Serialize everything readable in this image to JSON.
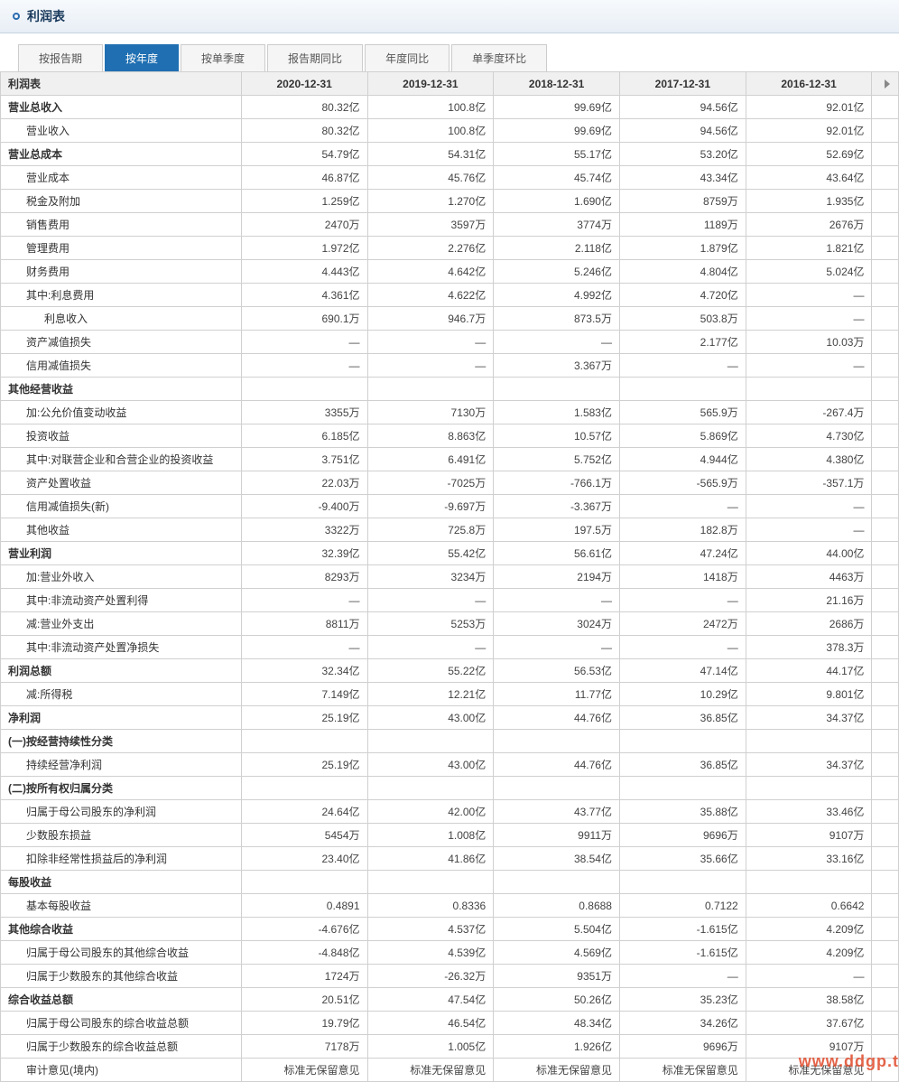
{
  "header": {
    "title": "利润表"
  },
  "tabs": {
    "items": [
      "按报告期",
      "按年度",
      "按单季度",
      "报告期同比",
      "年度同比",
      "单季度环比"
    ],
    "active_index": 1
  },
  "table": {
    "label_header": "利润表",
    "columns": [
      "2020-12-31",
      "2019-12-31",
      "2018-12-31",
      "2017-12-31",
      "2016-12-31"
    ],
    "rows": [
      {
        "label": "营业总收入",
        "bold": true,
        "indent": 0,
        "values": [
          "80.32亿",
          "100.8亿",
          "99.69亿",
          "94.56亿",
          "92.01亿"
        ]
      },
      {
        "label": "营业收入",
        "bold": false,
        "indent": 1,
        "values": [
          "80.32亿",
          "100.8亿",
          "99.69亿",
          "94.56亿",
          "92.01亿"
        ]
      },
      {
        "label": "营业总成本",
        "bold": true,
        "indent": 0,
        "values": [
          "54.79亿",
          "54.31亿",
          "55.17亿",
          "53.20亿",
          "52.69亿"
        ]
      },
      {
        "label": "营业成本",
        "bold": false,
        "indent": 1,
        "values": [
          "46.87亿",
          "45.76亿",
          "45.74亿",
          "43.34亿",
          "43.64亿"
        ]
      },
      {
        "label": "税金及附加",
        "bold": false,
        "indent": 1,
        "values": [
          "1.259亿",
          "1.270亿",
          "1.690亿",
          "8759万",
          "1.935亿"
        ]
      },
      {
        "label": "销售费用",
        "bold": false,
        "indent": 1,
        "values": [
          "2470万",
          "3597万",
          "3774万",
          "1189万",
          "2676万"
        ]
      },
      {
        "label": "管理费用",
        "bold": false,
        "indent": 1,
        "values": [
          "1.972亿",
          "2.276亿",
          "2.118亿",
          "1.879亿",
          "1.821亿"
        ]
      },
      {
        "label": "财务费用",
        "bold": false,
        "indent": 1,
        "values": [
          "4.443亿",
          "4.642亿",
          "5.246亿",
          "4.804亿",
          "5.024亿"
        ]
      },
      {
        "label": "其中:利息费用",
        "bold": false,
        "indent": 1,
        "values": [
          "4.361亿",
          "4.622亿",
          "4.992亿",
          "4.720亿",
          "—"
        ]
      },
      {
        "label": "利息收入",
        "bold": false,
        "indent": 2,
        "values": [
          "690.1万",
          "946.7万",
          "873.5万",
          "503.8万",
          "—"
        ]
      },
      {
        "label": "资产减值损失",
        "bold": false,
        "indent": 1,
        "values": [
          "—",
          "—",
          "—",
          "2.177亿",
          "10.03万"
        ]
      },
      {
        "label": "信用减值损失",
        "bold": false,
        "indent": 1,
        "values": [
          "—",
          "—",
          "3.367万",
          "—",
          "—"
        ]
      },
      {
        "label": "其他经营收益",
        "bold": true,
        "indent": 0,
        "values": [
          "",
          "",
          "",
          "",
          ""
        ]
      },
      {
        "label": "加:公允价值变动收益",
        "bold": false,
        "indent": 1,
        "values": [
          "3355万",
          "7130万",
          "1.583亿",
          "565.9万",
          "-267.4万"
        ]
      },
      {
        "label": "投资收益",
        "bold": false,
        "indent": 1,
        "values": [
          "6.185亿",
          "8.863亿",
          "10.57亿",
          "5.869亿",
          "4.730亿"
        ]
      },
      {
        "label": "其中:对联营企业和合营企业的投资收益",
        "bold": false,
        "indent": 1,
        "values": [
          "3.751亿",
          "6.491亿",
          "5.752亿",
          "4.944亿",
          "4.380亿"
        ]
      },
      {
        "label": "资产处置收益",
        "bold": false,
        "indent": 1,
        "values": [
          "22.03万",
          "-7025万",
          "-766.1万",
          "-565.9万",
          "-357.1万"
        ]
      },
      {
        "label": "信用减值损失(新)",
        "bold": false,
        "indent": 1,
        "values": [
          "-9.400万",
          "-9.697万",
          "-3.367万",
          "—",
          "—"
        ]
      },
      {
        "label": "其他收益",
        "bold": false,
        "indent": 1,
        "values": [
          "3322万",
          "725.8万",
          "197.5万",
          "182.8万",
          "—"
        ]
      },
      {
        "label": "营业利润",
        "bold": true,
        "indent": 0,
        "values": [
          "32.39亿",
          "55.42亿",
          "56.61亿",
          "47.24亿",
          "44.00亿"
        ]
      },
      {
        "label": "加:营业外收入",
        "bold": false,
        "indent": 1,
        "values": [
          "8293万",
          "3234万",
          "2194万",
          "1418万",
          "4463万"
        ]
      },
      {
        "label": "其中:非流动资产处置利得",
        "bold": false,
        "indent": 1,
        "values": [
          "—",
          "—",
          "—",
          "—",
          "21.16万"
        ]
      },
      {
        "label": "减:营业外支出",
        "bold": false,
        "indent": 1,
        "values": [
          "8811万",
          "5253万",
          "3024万",
          "2472万",
          "2686万"
        ]
      },
      {
        "label": "其中:非流动资产处置净损失",
        "bold": false,
        "indent": 1,
        "values": [
          "—",
          "—",
          "—",
          "—",
          "378.3万"
        ]
      },
      {
        "label": "利润总额",
        "bold": true,
        "indent": 0,
        "values": [
          "32.34亿",
          "55.22亿",
          "56.53亿",
          "47.14亿",
          "44.17亿"
        ]
      },
      {
        "label": "减:所得税",
        "bold": false,
        "indent": 1,
        "values": [
          "7.149亿",
          "12.21亿",
          "11.77亿",
          "10.29亿",
          "9.801亿"
        ]
      },
      {
        "label": "净利润",
        "bold": true,
        "indent": 0,
        "values": [
          "25.19亿",
          "43.00亿",
          "44.76亿",
          "36.85亿",
          "34.37亿"
        ]
      },
      {
        "label": "(一)按经营持续性分类",
        "bold": true,
        "indent": 0,
        "values": [
          "",
          "",
          "",
          "",
          ""
        ]
      },
      {
        "label": "持续经营净利润",
        "bold": false,
        "indent": 1,
        "values": [
          "25.19亿",
          "43.00亿",
          "44.76亿",
          "36.85亿",
          "34.37亿"
        ]
      },
      {
        "label": "(二)按所有权归属分类",
        "bold": true,
        "indent": 0,
        "values": [
          "",
          "",
          "",
          "",
          ""
        ]
      },
      {
        "label": "归属于母公司股东的净利润",
        "bold": false,
        "indent": 1,
        "values": [
          "24.64亿",
          "42.00亿",
          "43.77亿",
          "35.88亿",
          "33.46亿"
        ]
      },
      {
        "label": "少数股东损益",
        "bold": false,
        "indent": 1,
        "values": [
          "5454万",
          "1.008亿",
          "9911万",
          "9696万",
          "9107万"
        ]
      },
      {
        "label": "扣除非经常性损益后的净利润",
        "bold": false,
        "indent": 1,
        "values": [
          "23.40亿",
          "41.86亿",
          "38.54亿",
          "35.66亿",
          "33.16亿"
        ]
      },
      {
        "label": "每股收益",
        "bold": true,
        "indent": 0,
        "values": [
          "",
          "",
          "",
          "",
          ""
        ]
      },
      {
        "label": "基本每股收益",
        "bold": false,
        "indent": 1,
        "values": [
          "0.4891",
          "0.8336",
          "0.8688",
          "0.7122",
          "0.6642"
        ]
      },
      {
        "label": "其他综合收益",
        "bold": true,
        "indent": 0,
        "values": [
          "-4.676亿",
          "4.537亿",
          "5.504亿",
          "-1.615亿",
          "4.209亿"
        ]
      },
      {
        "label": "归属于母公司股东的其他综合收益",
        "bold": false,
        "indent": 1,
        "values": [
          "-4.848亿",
          "4.539亿",
          "4.569亿",
          "-1.615亿",
          "4.209亿"
        ]
      },
      {
        "label": "归属于少数股东的其他综合收益",
        "bold": false,
        "indent": 1,
        "values": [
          "1724万",
          "-26.32万",
          "9351万",
          "—",
          "—"
        ]
      },
      {
        "label": "综合收益总额",
        "bold": true,
        "indent": 0,
        "values": [
          "20.51亿",
          "47.54亿",
          "50.26亿",
          "35.23亿",
          "38.58亿"
        ]
      },
      {
        "label": "归属于母公司股东的综合收益总额",
        "bold": false,
        "indent": 1,
        "values": [
          "19.79亿",
          "46.54亿",
          "48.34亿",
          "34.26亿",
          "37.67亿"
        ]
      },
      {
        "label": "归属于少数股东的综合收益总额",
        "bold": false,
        "indent": 1,
        "values": [
          "7178万",
          "1.005亿",
          "1.926亿",
          "9696万",
          "9107万"
        ]
      },
      {
        "label": "审计意见(境内)",
        "bold": false,
        "indent": 1,
        "values": [
          "标准无保留意见",
          "标准无保留意见",
          "标准无保留意见",
          "标准无保留意见",
          "标准无保留意见"
        ]
      }
    ]
  },
  "watermark": "www.ddgp.t",
  "colors": {
    "header_gradient_top": "#f7fafd",
    "header_gradient_bottom": "#e8eef5",
    "header_border": "#c5d2e0",
    "bullet_border": "#2b6cb0",
    "title_text": "#1a3a5c",
    "tab_bg": "#f5f5f5",
    "tab_border": "#cccccc",
    "tab_active_bg": "#1f6fb2",
    "tab_active_text": "#ffffff",
    "cell_border": "#d0d0d0",
    "th_bg": "#f0f0f0",
    "watermark_color": "#e04a2a"
  }
}
